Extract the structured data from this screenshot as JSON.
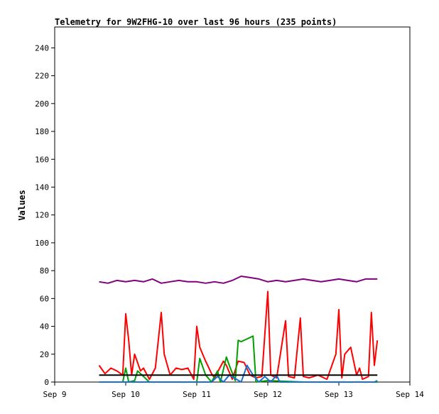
{
  "chart_data": {
    "type": "line",
    "title": "Telemetry for 9W2FHG-10 over last 96 hours (235 points)",
    "xlabel": "",
    "ylabel": "Values",
    "ylim": [
      0,
      255
    ],
    "xlim": [
      "2024-09-09 00:00",
      "2024-09-14 00:00"
    ],
    "yticks": [
      0,
      20,
      40,
      60,
      80,
      100,
      120,
      140,
      160,
      180,
      200,
      220,
      240
    ],
    "xticks": [
      "Sep 9",
      "Sep 10",
      "Sep 11",
      "Sep 12",
      "Sep 13",
      "Sep 14"
    ],
    "grid": false,
    "legend": "none",
    "series": [
      {
        "color": "#800080",
        "x": [
          "2024-09-09 15:00",
          "2024-09-09 18:00",
          "2024-09-09 21:00",
          "2024-09-10 00:00",
          "2024-09-10 03:00",
          "2024-09-10 06:00",
          "2024-09-10 09:00",
          "2024-09-10 12:00",
          "2024-09-10 15:00",
          "2024-09-10 18:00",
          "2024-09-10 21:00",
          "2024-09-11 00:00",
          "2024-09-11 03:00",
          "2024-09-11 06:00",
          "2024-09-11 09:00",
          "2024-09-11 12:00",
          "2024-09-11 15:00",
          "2024-09-11 18:00",
          "2024-09-11 21:00",
          "2024-09-12 00:00",
          "2024-09-12 03:00",
          "2024-09-12 06:00",
          "2024-09-12 09:00",
          "2024-09-12 12:00",
          "2024-09-12 15:00",
          "2024-09-12 18:00",
          "2024-09-12 21:00",
          "2024-09-13 00:00",
          "2024-09-13 03:00",
          "2024-09-13 06:00",
          "2024-09-13 09:00",
          "2024-09-13 12:00",
          "2024-09-13 13:00"
        ],
        "values": [
          72,
          71,
          73,
          72,
          73,
          72,
          74,
          71,
          72,
          73,
          72,
          72,
          71,
          72,
          71,
          73,
          76,
          75,
          74,
          72,
          73,
          72,
          73,
          74,
          73,
          72,
          73,
          74,
          73,
          72,
          74,
          74,
          74
        ]
      },
      {
        "color": "#ff0000",
        "x": [
          "2024-09-09 15:00",
          "2024-09-09 17:00",
          "2024-09-09 19:00",
          "2024-09-09 21:00",
          "2024-09-09 23:00",
          "2024-09-10 00:00",
          "2024-09-10 01:00",
          "2024-09-10 02:00",
          "2024-09-10 03:00",
          "2024-09-10 05:00",
          "2024-09-10 06:00",
          "2024-09-10 08:00",
          "2024-09-10 10:00",
          "2024-09-10 12:00",
          "2024-09-10 13:00",
          "2024-09-10 15:00",
          "2024-09-10 17:00",
          "2024-09-10 19:00",
          "2024-09-10 21:00",
          "2024-09-10 23:00",
          "2024-09-11 00:00",
          "2024-09-11 01:00",
          "2024-09-11 03:00",
          "2024-09-11 05:00",
          "2024-09-11 06:00",
          "2024-09-11 09:00",
          "2024-09-11 10:00",
          "2024-09-11 12:00",
          "2024-09-11 14:00",
          "2024-09-11 16:00",
          "2024-09-11 18:00",
          "2024-09-11 20:00",
          "2024-09-11 22:00",
          "2024-09-12 00:00",
          "2024-09-12 01:00",
          "2024-09-12 03:00",
          "2024-09-12 06:00",
          "2024-09-12 07:00",
          "2024-09-12 09:00",
          "2024-09-12 11:00",
          "2024-09-12 12:00",
          "2024-09-12 14:00",
          "2024-09-12 17:00",
          "2024-09-12 20:00",
          "2024-09-12 23:00",
          "2024-09-13 00:00",
          "2024-09-13 01:00",
          "2024-09-13 02:00",
          "2024-09-13 04:00",
          "2024-09-13 06:00",
          "2024-09-13 07:00",
          "2024-09-13 08:00",
          "2024-09-13 10:00",
          "2024-09-13 11:00",
          "2024-09-13 12:00",
          "2024-09-13 13:00"
        ],
        "values": [
          12,
          6,
          10,
          8,
          5,
          49,
          30,
          5,
          20,
          8,
          10,
          2,
          10,
          50,
          20,
          5,
          10,
          9,
          10,
          2,
          40,
          25,
          15,
          6,
          3,
          15,
          12,
          2,
          15,
          14,
          5,
          3,
          4,
          65,
          5,
          3,
          44,
          4,
          3,
          46,
          4,
          3,
          5,
          2,
          20,
          52,
          3,
          20,
          25,
          5,
          10,
          2,
          4,
          50,
          12,
          30
        ]
      },
      {
        "color": "#00a000",
        "x": [
          "2024-09-09 15:00",
          "2024-09-09 23:00",
          "2024-09-10 00:00",
          "2024-09-10 01:00",
          "2024-09-10 03:00",
          "2024-09-10 04:00",
          "2024-09-10 08:00",
          "2024-09-10 12:00",
          "2024-09-10 20:00",
          "2024-09-11 00:00",
          "2024-09-11 01:00",
          "2024-09-11 03:00",
          "2024-09-11 05:00",
          "2024-09-11 07:00",
          "2024-09-11 08:00",
          "2024-09-11 10:00",
          "2024-09-11 11:00",
          "2024-09-11 13:00",
          "2024-09-11 14:00",
          "2024-09-11 15:00",
          "2024-09-11 19:00",
          "2024-09-11 20:00",
          "2024-09-12 00:00",
          "2024-09-12 12:00",
          "2024-09-13 00:00",
          "2024-09-13 13:00"
        ],
        "values": [
          0,
          0,
          10,
          0,
          1,
          8,
          0,
          0,
          0,
          0,
          17,
          5,
          0,
          8,
          0,
          18,
          12,
          1,
          30,
          29,
          33,
          0,
          1,
          0,
          0,
          0
        ]
      },
      {
        "color": "#1a6fd0",
        "x": [
          "2024-09-09 15:00",
          "2024-09-10 00:00",
          "2024-09-11 00:00",
          "2024-09-11 05:00",
          "2024-09-11 07:00",
          "2024-09-11 09:00",
          "2024-09-11 11:00",
          "2024-09-11 15:00",
          "2024-09-11 17:00",
          "2024-09-11 19:00",
          "2024-09-11 21:00",
          "2024-09-11 23:00",
          "2024-09-12 01:00",
          "2024-09-12 03:00",
          "2024-09-12 04:00",
          "2024-09-12 06:00",
          "2024-09-13 00:00",
          "2024-09-13 12:00",
          "2024-09-13 13:00"
        ],
        "values": [
          0,
          0,
          0,
          0,
          4,
          0,
          5,
          0,
          12,
          5,
          0,
          4,
          0,
          5,
          0,
          0,
          0,
          0,
          1
        ]
      },
      {
        "color": "#000000",
        "x": [
          "2024-09-09 15:00",
          "2024-09-13 13:00"
        ],
        "values": [
          5,
          5
        ]
      }
    ]
  }
}
